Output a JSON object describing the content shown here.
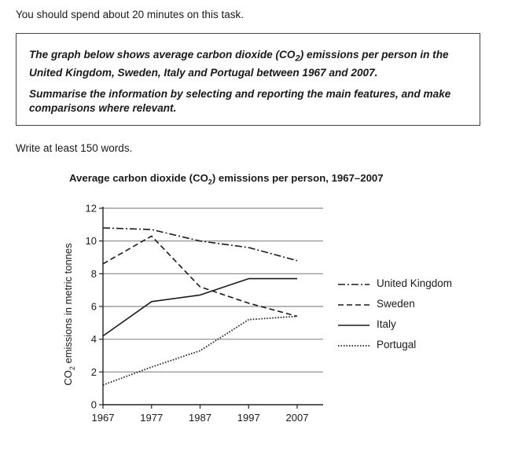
{
  "page": {
    "intro": "You should spend about 20 minutes on this task.",
    "task": [
      "The graph below shows average carbon dioxide (CO2) emissions per person in the United Kingdom, Sweden, Italy and Portugal between 1967 and 2007.",
      "Summarise the information by selecting and reporting the main features, and make comparisons where relevant."
    ],
    "task_p1_a": "The graph below shows average carbon dioxide (CO",
    "task_p1_sub": "2",
    "task_p1_b": ") emissions per person in the United Kingdom, Sweden, Italy and Portugal between 1967 and 2007.",
    "task_p2": "Summarise the information by selecting and reporting the main features, and make comparisons where relevant.",
    "word_count_note": "Write at least 150 words."
  },
  "chart_data": {
    "type": "line",
    "title": "Average carbon dioxide (CO2) emissions per person, 1967–2007",
    "title_a": "Average carbon dioxide (CO",
    "title_sub": "2",
    "title_b": ") emissions per person, 1967–2007",
    "ylabel": "CO2 emissions in metric tonnes",
    "ylabel_a": "CO",
    "ylabel_sub": "2",
    "ylabel_b": " emissions in metric tonnes",
    "x": [
      1967,
      1977,
      1987,
      1997,
      2007
    ],
    "x_tick_labels": [
      "1967",
      "1977",
      "1987",
      "1997",
      "2007"
    ],
    "y_ticks": [
      "0",
      "2",
      "4",
      "6",
      "8",
      "10",
      "12"
    ],
    "ylim": [
      0,
      12
    ],
    "grid": "horizontal",
    "legend_position": "right",
    "series": [
      {
        "name": "United Kingdom",
        "style": "dash-dot",
        "values": [
          10.8,
          10.7,
          10.0,
          9.6,
          8.8
        ]
      },
      {
        "name": "Sweden",
        "style": "dashed",
        "values": [
          8.6,
          10.3,
          7.2,
          6.2,
          5.4
        ]
      },
      {
        "name": "Italy",
        "style": "solid",
        "values": [
          4.2,
          6.3,
          6.7,
          7.7,
          7.7
        ]
      },
      {
        "name": "Portugal",
        "style": "dotted",
        "values": [
          1.2,
          2.3,
          3.3,
          5.2,
          5.4
        ]
      }
    ]
  }
}
